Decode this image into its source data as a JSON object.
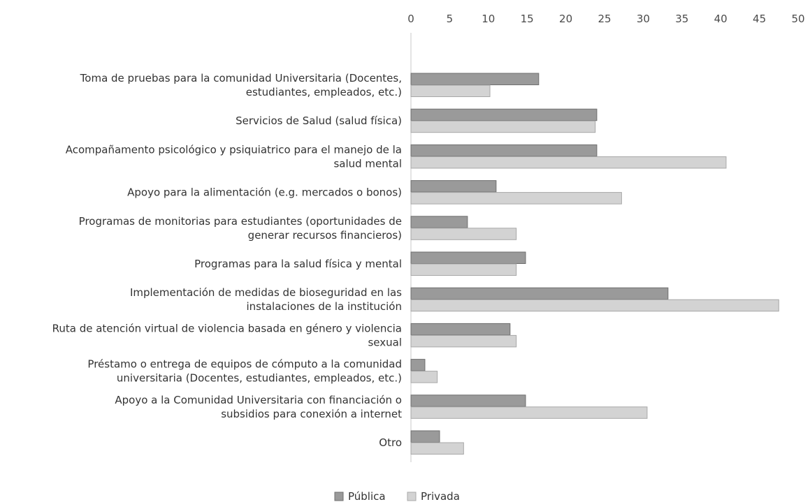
{
  "chart_data": {
    "type": "bar",
    "orientation": "horizontal",
    "categories": [
      [
        "Toma de pruebas para la comunidad Universitaria (Docentes,",
        "estudiantes, empleados, etc.)"
      ],
      [
        "Servicios de Salud (salud física)"
      ],
      [
        "Acompañamento psicológico y psiquiatrico para el manejo de la",
        "salud mental"
      ],
      [
        "Apoyo para la alimentación (e.g. mercados o bonos)"
      ],
      [
        "Programas de monitorias para estudiantes (oportunidades de",
        "generar recursos financieros)"
      ],
      [
        "Programas para la salud física y mental"
      ],
      [
        "Implementación de medidas de bioseguridad en las",
        "instalaciones  de la institución"
      ],
      [
        "Ruta de atención virtual de violencia basada en género y violencia",
        "sexual"
      ],
      [
        "Préstamo o entrega de equipos de cómputo a la comunidad",
        "universitaria (Docentes, estudiantes, empleados, etc.)"
      ],
      [
        "Apoyo a la Comunidad Universitaria con financiación o",
        "subsidios para conexión a internet"
      ],
      [
        "Otro"
      ]
    ],
    "series": [
      {
        "name": "Pública",
        "color": "#9a9a9a",
        "stroke": "#6f6f6f",
        "values": [
          16.5,
          24,
          24,
          11,
          7.3,
          14.8,
          33.2,
          12.8,
          1.8,
          14.8,
          3.7
        ]
      },
      {
        "name": "Privada",
        "color": "#d3d3d3",
        "stroke": "#a8a8a8",
        "values": [
          10.2,
          23.8,
          40.7,
          27.2,
          13.6,
          13.6,
          47.5,
          13.6,
          3.4,
          30.5,
          6.8
        ]
      }
    ],
    "xlim": [
      0,
      50
    ],
    "xticks": [
      0,
      5,
      10,
      15,
      20,
      25,
      30,
      35,
      40,
      45,
      50
    ],
    "xaxis_position": "top",
    "grid": false,
    "legend_position": "bottom-center"
  }
}
